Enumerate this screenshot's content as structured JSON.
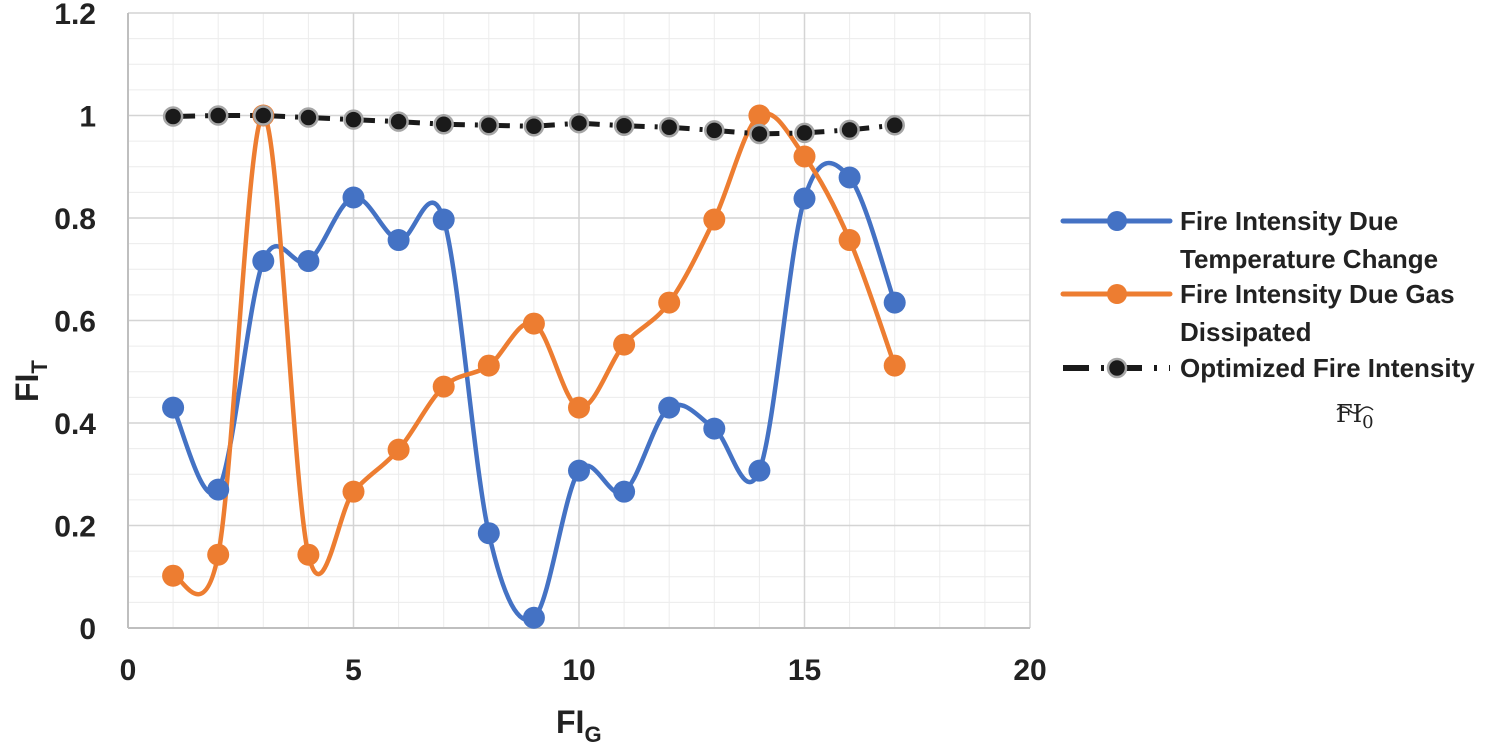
{
  "chart_data": {
    "type": "line",
    "title": "",
    "xlabel": "FI",
    "xlabel_sub": "G",
    "ylabel": "FI",
    "ylabel_sub": "T",
    "xlim": [
      0,
      20
    ],
    "ylim": [
      0,
      1.2
    ],
    "xticks": [
      0,
      5,
      10,
      15,
      20
    ],
    "xtick_labels": [
      "0",
      "5",
      "10",
      "15",
      "20"
    ],
    "yticks": [
      0,
      0.2,
      0.4,
      0.6,
      0.8,
      1,
      1.2
    ],
    "ytick_labels": [
      "0",
      "0.2",
      "0.4",
      "0.6",
      "0.8",
      "1",
      "1.2"
    ],
    "grid": true,
    "minor_grid": true,
    "legend_position": "right",
    "x": [
      1,
      2,
      3,
      4,
      5,
      6,
      7,
      8,
      9,
      10,
      11,
      12,
      13,
      14,
      15,
      16,
      17
    ],
    "series": [
      {
        "name": "Fire Intensity Due Temperature Change",
        "legend_lines": [
          "Fire Intensity Due",
          "Temperature Change"
        ],
        "color": "#4472c4",
        "style": "smooth-solid",
        "values": [
          0.43,
          0.27,
          0.716,
          0.716,
          0.84,
          0.757,
          0.797,
          0.185,
          0.02,
          0.307,
          0.266,
          0.43,
          0.389,
          0.307,
          0.838,
          0.879,
          0.635
        ]
      },
      {
        "name": "Fire Intensity Due Gas Dissipated",
        "legend_lines": [
          "Fire Intensity Due Gas",
          "Dissipated"
        ],
        "color": "#ed7d31",
        "style": "smooth-solid",
        "values": [
          0.102,
          0.143,
          1.0,
          0.143,
          0.266,
          0.348,
          0.471,
          0.512,
          0.594,
          0.43,
          0.553,
          0.635,
          0.797,
          1.0,
          0.92,
          0.757,
          0.512
        ]
      },
      {
        "name": "Optimized Fire Intensity",
        "legend_lines": [
          "Optimized Fire Intensity"
        ],
        "legend_symbol": "FI",
        "legend_symbol_sub": "0",
        "color": "#1a1a1a",
        "marker_edge": "#a6a6a6",
        "style": "dash-dot",
        "values": [
          0.998,
          1.0,
          1.0,
          0.996,
          0.992,
          0.988,
          0.983,
          0.981,
          0.979,
          0.985,
          0.98,
          0.977,
          0.971,
          0.964,
          0.966,
          0.972,
          0.981
        ]
      }
    ]
  }
}
